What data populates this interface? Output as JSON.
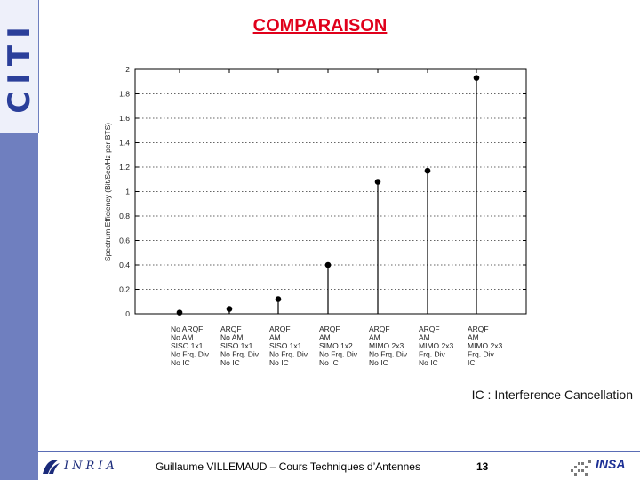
{
  "logo_text": "CITI",
  "title": "COMPARAISON",
  "note": "IC : Interference Cancellation",
  "footer": {
    "inria_label": "INRIA",
    "author": "Guillaume VILLEMAUD – Cours Techniques d’Antennes",
    "page": "13",
    "insa_label": "INSA"
  },
  "colors": {
    "title": "#e0001b",
    "sidebar": "#6f7fbf",
    "stem": "#000000"
  },
  "chart_data": {
    "type": "stem",
    "ylabel": "Spectrum Efficiency (Bit/Sec/Hz per BTS)",
    "ylim": [
      0,
      2
    ],
    "yticks": [
      "0",
      "0.2",
      "0.4",
      "0.6",
      "0.8",
      "1",
      "1.2",
      "1.4",
      "1.6",
      "1.8",
      "2"
    ],
    "grid": "dotted horizontal",
    "categories": [
      [
        "No ARQF",
        "No AM",
        "SISO 1x1",
        "No Frq. Div",
        "No IC"
      ],
      [
        "ARQF",
        "No AM",
        "SISO 1x1",
        "No Frq. Div",
        "No IC"
      ],
      [
        "ARQF",
        "AM",
        "SISO 1x1",
        "No Frq. Div",
        "No IC"
      ],
      [
        "ARQF",
        "AM",
        "SIMO 1x2",
        "No Frq. Div",
        "No IC"
      ],
      [
        "ARQF",
        "AM",
        "MIMO 2x3",
        "No Frq. Div",
        "No IC"
      ],
      [
        "ARQF",
        "AM",
        "MIMO 2x3",
        "Frq. Div",
        "No IC"
      ],
      [
        "ARQF",
        "AM",
        "MIMO 2x3",
        "Frq. Div",
        "IC"
      ]
    ],
    "values": [
      0.01,
      0.04,
      0.12,
      0.4,
      1.08,
      1.17,
      1.93
    ]
  }
}
